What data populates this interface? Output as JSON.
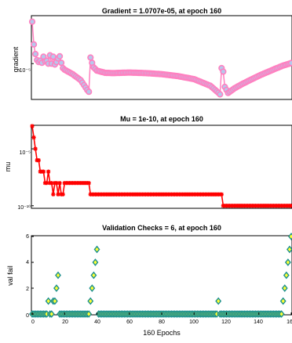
{
  "panels": [
    {
      "title": "Gradient = 1.0707e-05, at epoch 160",
      "ylabel": "gradient",
      "yscale": "log",
      "ytick_label": "10⁻⁵",
      "ytick_value": 1e-05,
      "ylim": [
        2e-07,
        0.002
      ]
    },
    {
      "title": "Mu = 1e-10, at epoch 160",
      "ylabel": "mu",
      "yscale": "log",
      "ytick_labels": [
        "10⁻⁵",
        "10⁻¹⁰"
      ],
      "ytick_values": [
        1e-05,
        1e-10
      ],
      "ylim": [
        7e-11,
        0.001
      ]
    },
    {
      "title": "Validation Checks = 6, at epoch 160",
      "ylabel": "val fail",
      "yscale": "linear",
      "ytick_labels": [
        "0",
        "2",
        "4",
        "6"
      ],
      "ylim": [
        0,
        6
      ]
    }
  ],
  "xlabel": "160 Epochs",
  "xtick_labels": [
    "0",
    "20",
    "40",
    "60",
    "80",
    "100",
    "120",
    "140",
    "16"
  ],
  "colors": {
    "gradient_line": "#ff80c0",
    "gradient_marker_fill": "#b6c8ec",
    "mu": "#ff0000",
    "val_fill": "#ffff33",
    "val_stroke": "#1a8f8f",
    "axis": "#000000"
  },
  "chart_data": [
    {
      "type": "line",
      "title": "Gradient = 1.0707e-05, at epoch 160",
      "ylabel": "gradient",
      "yscale": "log",
      "xlim": [
        0,
        160
      ],
      "series": [
        {
          "x": [
            0,
            1,
            2,
            3,
            4,
            5,
            6,
            7,
            8,
            9,
            10,
            11,
            12,
            13,
            14,
            15,
            16,
            17,
            18,
            19,
            20,
            25,
            30,
            34,
            35,
            36,
            37,
            38,
            40,
            45,
            50,
            60,
            70,
            80,
            90,
            100,
            110,
            113,
            115,
            116,
            117,
            118,
            119,
            120,
            121,
            122,
            125,
            130,
            140,
            150,
            155,
            158,
            160
          ],
          "values": [
            0.0012,
            9e-05,
            3e-05,
            1.5e-05,
            1.2e-05,
            1.4e-05,
            1.1e-05,
            2.2e-05,
            1.3e-05,
            1.4e-05,
            1e-05,
            2.6e-05,
            1e-05,
            2.2e-05,
            9e-06,
            1.2e-05,
            1.8e-05,
            2.3e-05,
            1.1e-05,
            6e-06,
            5e-06,
            3e-06,
            1.5e-06,
            5e-07,
            4e-07,
            2e-05,
            1.1e-05,
            6.5e-06,
            4.5e-06,
            3.5e-06,
            3.4e-06,
            3.6e-06,
            3.4e-06,
            3e-06,
            2.4e-06,
            1.7e-06,
            8e-07,
            5e-07,
            3.6e-07,
            3e-07,
            6e-06,
            4e-06,
            7e-07,
            5e-07,
            3.5e-07,
            4e-07,
            6e-07,
            1e-06,
            2.5e-06,
            5.5e-06,
            8e-06,
            9.5e-06,
            1.0707e-05
          ]
        }
      ]
    },
    {
      "type": "line",
      "title": "Mu = 1e-10, at epoch 160",
      "ylabel": "mu",
      "yscale": "log",
      "xlim": [
        0,
        160
      ],
      "series": [
        {
          "x": [
            0,
            1,
            2,
            3,
            4,
            5,
            6,
            7,
            8,
            9,
            10,
            11,
            12,
            13,
            14,
            15,
            16,
            17,
            18,
            19,
            20,
            34,
            35,
            36,
            116,
            117,
            118,
            160
          ],
          "values": [
            0.001,
            0.0001,
            1e-05,
            1e-06,
            1e-06,
            1e-07,
            1e-07,
            1e-07,
            1e-08,
            1e-08,
            1e-07,
            1e-08,
            1e-08,
            1e-09,
            1e-08,
            1e-08,
            1e-09,
            1e-08,
            1e-09,
            1e-09,
            1e-08,
            1e-08,
            1e-08,
            1e-09,
            1e-09,
            1e-09,
            1e-10,
            1e-10
          ]
        }
      ]
    },
    {
      "type": "scatter",
      "title": "Validation Checks = 6, at epoch 160",
      "ylabel": "val fail",
      "ylim": [
        0,
        6
      ],
      "xlim": [
        0,
        160
      ],
      "series": [
        {
          "x": [
            10,
            13,
            14,
            15,
            16,
            36,
            37,
            38,
            39,
            40,
            115,
            155,
            156,
            157,
            158,
            159,
            160
          ],
          "values": [
            1,
            1,
            1,
            2,
            3,
            1,
            2,
            3,
            4,
            5,
            1,
            1,
            2,
            3,
            4,
            5,
            6
          ],
          "others": 0
        }
      ]
    }
  ]
}
